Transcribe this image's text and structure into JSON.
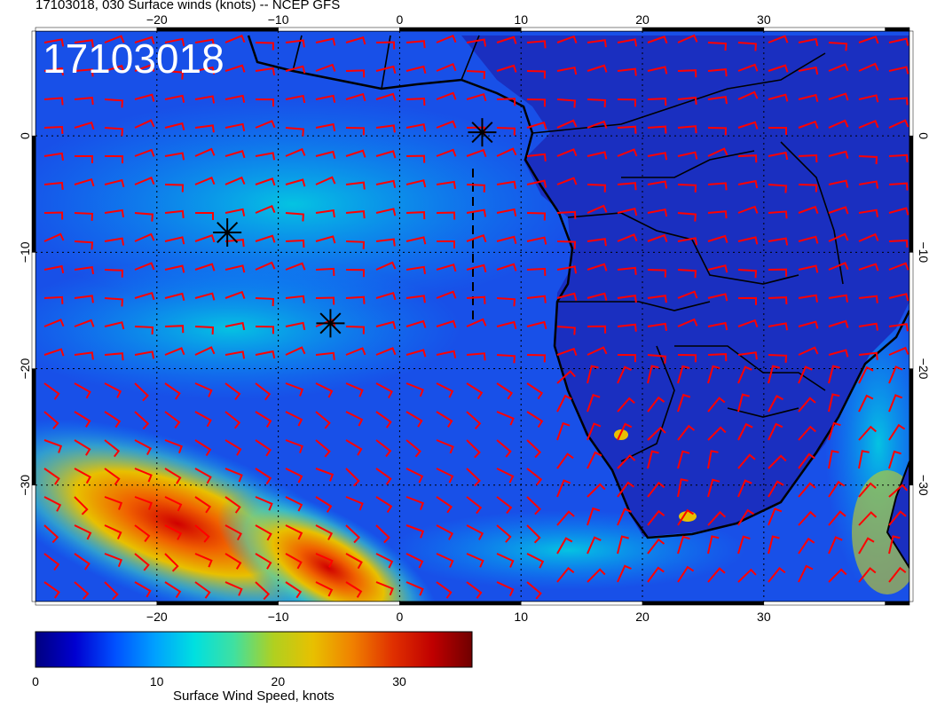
{
  "title": "17103018, 030 Surface winds (knots) -- NCEP GFS",
  "stamp": "17103018",
  "map": {
    "lon_range": [
      -30,
      42
    ],
    "lat_range": [
      -40,
      9
    ],
    "lon_ticks": [
      "−20",
      "−10",
      "0",
      "10",
      "20",
      "30"
    ],
    "lat_ticks": [
      "0",
      "−10",
      "−20",
      "−30"
    ],
    "barb_color": "#ff0000",
    "coast_color": "#000000",
    "markers": [
      {
        "lon": 6.8,
        "lat": 0.3
      },
      {
        "lon": -14.2,
        "lat": -8.3
      },
      {
        "lon": -5.7,
        "lat": -16.1
      }
    ]
  },
  "colorbar": {
    "label": "Surface Wind Speed, knots",
    "ticks": [
      "0",
      "10",
      "20",
      "30"
    ],
    "range": [
      0,
      36
    ],
    "colors": [
      "#000080",
      "#0000d0",
      "#0050ff",
      "#00a0ff",
      "#00e0e0",
      "#40e0a0",
      "#b0d020",
      "#e8c000",
      "#f08000",
      "#e03000",
      "#c00000",
      "#700000"
    ]
  }
}
